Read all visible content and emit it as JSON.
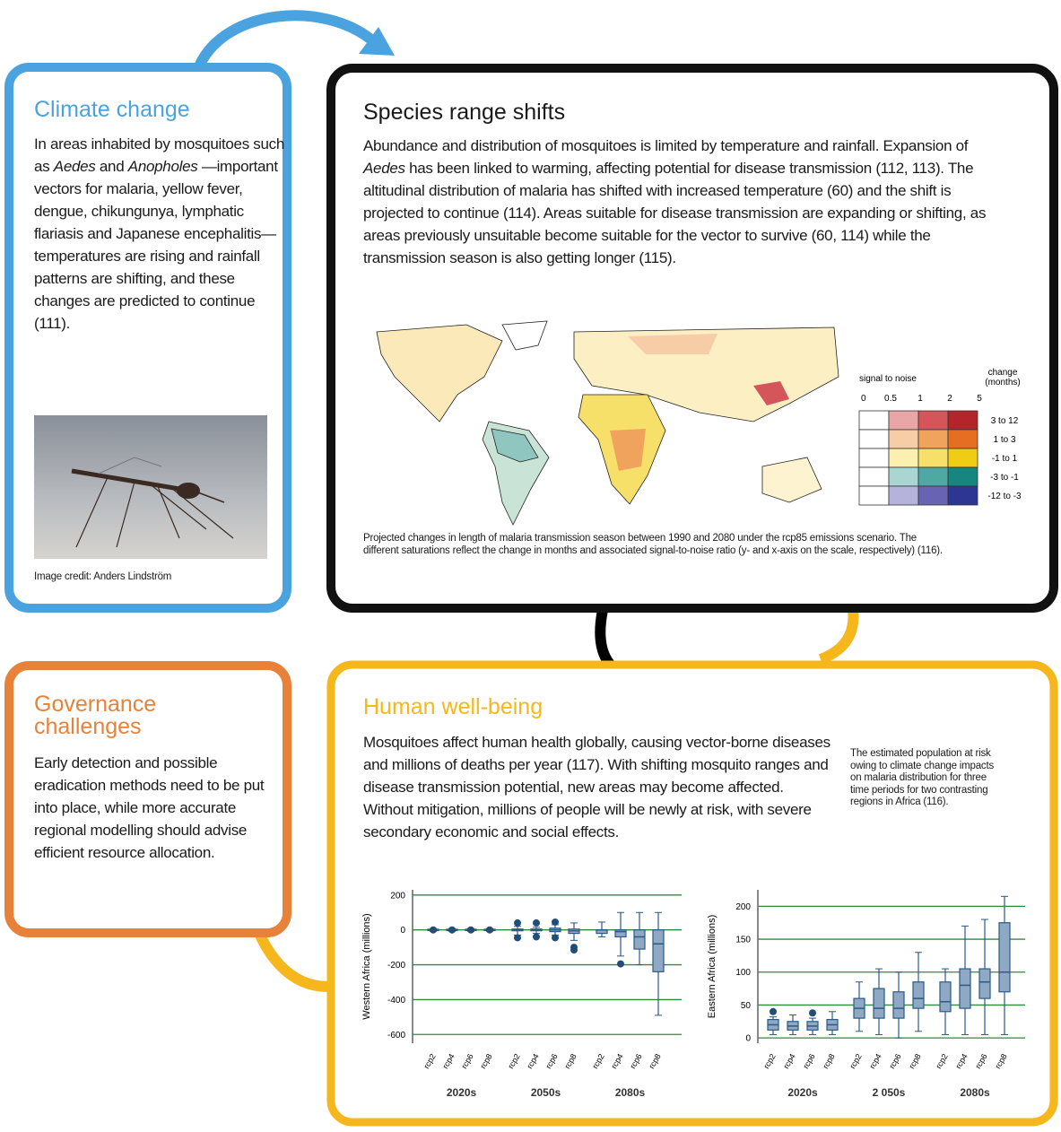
{
  "climate": {
    "title": "Climate change",
    "text": [
      "In areas inhabited by mosquitoes such as ",
      "Aedes",
      " and ",
      "Anopholes",
      " —important vectors for malaria, yellow fever, dengue, chikungunya, lymphatic flariasis and Japanese encephalitis—temperatures are rising and rainfall patterns are shifting, and these changes are predicted to continue (111)."
    ],
    "image_credit": "Image credit: Anders Lindström"
  },
  "species": {
    "title": "Species range shifts",
    "text": [
      "Abundance and distribution of mosquitoes is limited by temperature and rainfall. Expansion of ",
      "Aedes",
      " has been linked to warming, affecting potential for disease transmission (112, 113). The altitudinal distribution of malaria has shifted with increased temperature (60) and the shift is projected to continue (114). Areas suitable for disease transmission are expanding or shifting, as areas previously unsuitable become suitable for the vector to survive (60, 114) while the transmission season is also getting longer (115)."
    ],
    "legend": {
      "x_label": "signal to noise",
      "y_label": [
        "change",
        "(months)"
      ],
      "xticks": [
        0,
        0.5,
        1,
        2,
        5
      ],
      "rows": [
        "3 to 12",
        "1 to 3",
        "-1 to 1",
        "-3 to -1",
        "-12 to -3"
      ],
      "colors": [
        [
          "#ffffff",
          "#e8a7a6",
          "#d4565b",
          "#b3242b"
        ],
        [
          "#ffffff",
          "#f6cda7",
          "#f0a35c",
          "#e56e22"
        ],
        [
          "#ffffff",
          "#fbf0b0",
          "#f7e06a",
          "#f0cc14"
        ],
        [
          "#ffffff",
          "#a9d6d2",
          "#4fa9a3",
          "#17877e"
        ],
        [
          "#ffffff",
          "#b5b3dc",
          "#6863b3",
          "#2e3694"
        ]
      ]
    },
    "caption": "Projected changes in length of malaria transmission season between 1990 and 2080 under the rcp85 emissions scenario. The different saturations reflect the change in months and associated signal-to-noise ratio (y- and x-axis on the scale, respectively) (116)."
  },
  "governance": {
    "title": "Governance challenges",
    "text": "Early detection and possible eradication methods need to be put into place, while more accurate regional modelling should advise efficient resource allocation."
  },
  "wellbeing": {
    "title": "Human well-being",
    "text": "Mosquitoes affect human health globally, causing vector-borne diseases and millions of deaths per year (117). With shifting mosquito ranges and disease transmission potential, new areas may become affected. Without mitigation, millions of people will be newly at risk, with severe secondary economic and social effects.",
    "note": "The estimated population at risk owing to climate change impacts on malaria distribution for three time periods for two contrasting regions in Africa (116).",
    "charts": [
      {
        "type": "boxplot",
        "y_label": "Western Africa (millions)",
        "ylim": [
          -650,
          230
        ],
        "yticks": [
          200,
          0,
          -200,
          -400,
          -600
        ],
        "grid": true,
        "grid_color": "#2e8b3a",
        "box_color": "#8fa9c4",
        "line_color": "#2a5a85",
        "categories": [
          "rcp2",
          "rcp4",
          "rcp6",
          "rcp8",
          "rcp2",
          "rcp4",
          "rcp6",
          "rcp8",
          "rcp2",
          "rcp4",
          "rcp6",
          "rcp8"
        ],
        "groups": [
          "2020s",
          "2050s",
          "2080s"
        ],
        "boxes": [
          {
            "min": -8,
            "q1": -4,
            "median": 0,
            "q3": 4,
            "max": 8,
            "outliers": [
              0
            ]
          },
          {
            "min": -8,
            "q1": -4,
            "median": 0,
            "q3": 4,
            "max": 8,
            "outliers": [
              0
            ]
          },
          {
            "min": -8,
            "q1": -4,
            "median": 0,
            "q3": 4,
            "max": 8,
            "outliers": [
              0
            ]
          },
          {
            "min": -8,
            "q1": -4,
            "median": 0,
            "q3": 4,
            "max": 8,
            "outliers": [
              0
            ]
          },
          {
            "min": -30,
            "q1": -5,
            "median": 0,
            "q3": 5,
            "max": 20,
            "outliers": [
              40,
              -45
            ]
          },
          {
            "min": -20,
            "q1": -5,
            "median": 0,
            "q3": 5,
            "max": 15,
            "outliers": [
              40,
              -40
            ]
          },
          {
            "min": -30,
            "q1": -10,
            "median": 0,
            "q3": 10,
            "max": 30,
            "outliers": [
              45,
              -45
            ]
          },
          {
            "min": -60,
            "q1": -20,
            "median": -5,
            "q3": 5,
            "max": 40,
            "outliers": [
              -100,
              -115
            ]
          },
          {
            "min": -40,
            "q1": -20,
            "median": 0,
            "q3": 0,
            "max": 45,
            "outliers": []
          },
          {
            "min": -150,
            "q1": -40,
            "median": -10,
            "q3": 0,
            "max": 100,
            "outliers": [
              -195
            ]
          },
          {
            "min": -200,
            "q1": -110,
            "median": -40,
            "q3": 0,
            "max": 100,
            "outliers": []
          },
          {
            "min": -490,
            "q1": -240,
            "median": -80,
            "q3": 0,
            "max": 100,
            "outliers": []
          }
        ]
      },
      {
        "type": "boxplot",
        "y_label": "Eastern Africa (millions)",
        "ylim": [
          -8,
          225
        ],
        "yticks": [
          200,
          150,
          100,
          50,
          0
        ],
        "grid": true,
        "grid_color": "#2e8b3a",
        "box_color": "#8fa9c4",
        "line_color": "#2a5a85",
        "categories": [
          "rcp2",
          "rcp4",
          "rcp6",
          "rcp8",
          "rcp2",
          "rcp4",
          "rcp6",
          "rcp8",
          "rcp2",
          "rcp4",
          "rcp6",
          "rcp8"
        ],
        "groups": [
          "2020s",
          "2 050s",
          "2080s"
        ],
        "boxes": [
          {
            "min": 5,
            "q1": 12,
            "median": 20,
            "q3": 28,
            "max": 32,
            "outliers": [
              40
            ]
          },
          {
            "min": 5,
            "q1": 12,
            "median": 18,
            "q3": 25,
            "max": 35,
            "outliers": []
          },
          {
            "min": 5,
            "q1": 12,
            "median": 18,
            "q3": 25,
            "max": 30,
            "outliers": [
              38
            ]
          },
          {
            "min": 5,
            "q1": 12,
            "median": 20,
            "q3": 28,
            "max": 40,
            "outliers": []
          },
          {
            "min": 10,
            "q1": 30,
            "median": 45,
            "q3": 60,
            "max": 85,
            "outliers": []
          },
          {
            "min": 5,
            "q1": 30,
            "median": 45,
            "q3": 75,
            "max": 105,
            "outliers": []
          },
          {
            "min": 0,
            "q1": 30,
            "median": 45,
            "q3": 70,
            "max": 100,
            "outliers": []
          },
          {
            "min": 10,
            "q1": 45,
            "median": 60,
            "q3": 85,
            "max": 130,
            "outliers": []
          },
          {
            "min": 5,
            "q1": 40,
            "median": 55,
            "q3": 85,
            "max": 105,
            "outliers": []
          },
          {
            "min": 5,
            "q1": 45,
            "median": 80,
            "q3": 105,
            "max": 170,
            "outliers": []
          },
          {
            "min": 5,
            "q1": 60,
            "median": 85,
            "q3": 105,
            "max": 180,
            "outliers": []
          },
          {
            "min": 5,
            "q1": 70,
            "median": 100,
            "q3": 175,
            "max": 215,
            "outliers": []
          }
        ]
      }
    ]
  }
}
